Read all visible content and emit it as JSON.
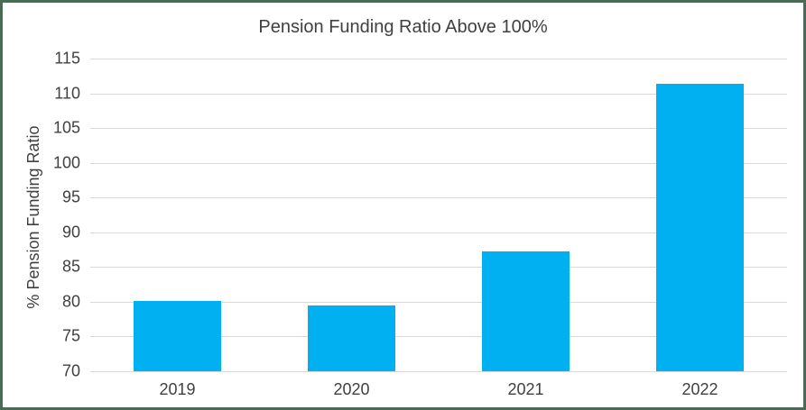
{
  "window": {
    "background_color": "#ffffff",
    "border_color": "#4a6a56"
  },
  "chart_data": {
    "type": "bar",
    "title": "Pension Funding Ratio Above 100%",
    "categories": [
      "2019",
      "2020",
      "2021",
      "2022"
    ],
    "values": [
      80.1,
      79.5,
      87.3,
      111.4
    ],
    "xlabel": "",
    "ylabel": "% Pension Funding Ratio",
    "ylim": [
      70,
      115
    ],
    "yticks": [
      70,
      75,
      80,
      85,
      90,
      95,
      100,
      105,
      110,
      115
    ],
    "grid": "horizontal",
    "legend": "none",
    "bar_color": "#00b0f0",
    "text_color": "#404040",
    "gridline_color": "#d9d9d9"
  }
}
